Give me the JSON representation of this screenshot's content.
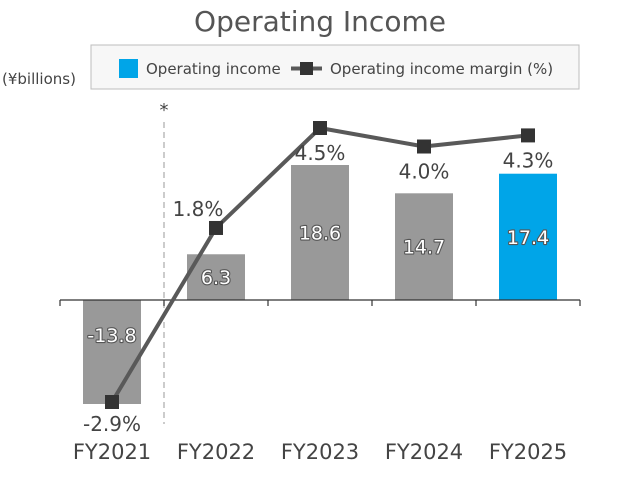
{
  "chart_data": {
    "type": "bar",
    "title": "Operating Income",
    "unit_label": "(¥billions)",
    "divider_note": "*",
    "categories": [
      "FY2021",
      "FY2022",
      "FY2023",
      "FY2024",
      "FY2025"
    ],
    "series": [
      {
        "name": "Operating income",
        "type": "bar",
        "values": [
          -13.8,
          6.3,
          18.6,
          14.7,
          17.4
        ],
        "value_labels": [
          "-13.8",
          "6.3",
          "18.6",
          "14.7",
          "17.4"
        ],
        "color": "#999999",
        "highlight_index": 4,
        "highlight_color": "#00A5E8"
      },
      {
        "name": "Operating income margin (%)",
        "type": "line",
        "values": [
          -2.9,
          1.8,
          4.5,
          4.0,
          4.3
        ],
        "value_labels": [
          "-2.9%",
          "1.8%",
          "4.5%",
          "4.0%",
          "4.3%"
        ],
        "color": "#595959"
      }
    ],
    "bar_ylim": [
      -14.5,
      18.6
    ],
    "margin_ylim": [
      -2.9,
      4.5
    ],
    "legend_position": "top",
    "grid": false
  }
}
